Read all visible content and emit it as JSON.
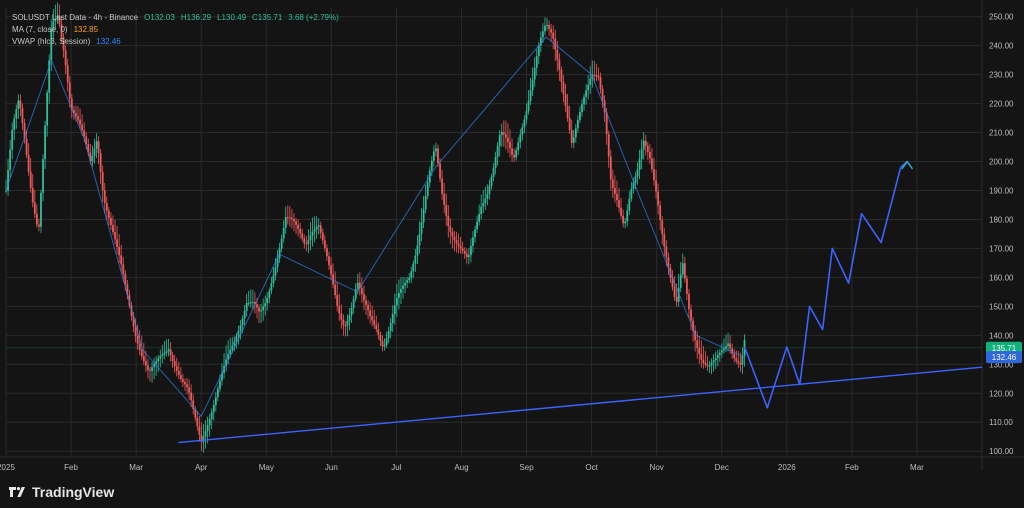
{
  "colors": {
    "background": "#141414",
    "grid": "#2a2a2a",
    "up": "#2fbf9a",
    "down": "#f05a5a",
    "vwap": "#2f8bff",
    "ma": "#ff9f1a",
    "axis_text": "#bdbdbd",
    "trendline": "#3b63ff",
    "projection": "#3b63ff",
    "arrow": "#2aa6c8",
    "label_green_bg": "#11b07a",
    "label_blue_bg": "#2f67d9"
  },
  "legend": {
    "symbol_line": "SOLUSDT Last Data - 4h - Binance",
    "o": "O132.03",
    "h": "H136.29",
    "l": "L130.49",
    "c": "C135.71",
    "chg": "3.68 (+2.79%)",
    "ma_line": "MA (7, close, 0)",
    "ma_value": "132.85",
    "vwap_line": "VWAP (hlc3, Session)",
    "vwap_value": "132.46"
  },
  "price_labels": {
    "last": "135.71",
    "vwap": "132.46"
  },
  "brand": {
    "name": "TradingView"
  },
  "chart_data": {
    "type": "candlestick",
    "title": "",
    "y_ticks": [
      "250.00",
      "240.00",
      "230.00",
      "220.00",
      "210.00",
      "200.00",
      "190.00",
      "180.00",
      "170.00",
      "160.00",
      "150.00",
      "140.00",
      "130.00",
      "120.00",
      "110.00",
      "100.00"
    ],
    "ylim": [
      98,
      253
    ],
    "x_labels": [
      "2025",
      "Feb",
      "Mar",
      "Apr",
      "May",
      "Jun",
      "Jul",
      "Aug",
      "Sep",
      "Oct",
      "Nov",
      "Dec",
      "2026",
      "Feb",
      "Mar"
    ],
    "xlim": [
      0,
      15
    ],
    "x_tick_positions": [
      0.0,
      1.0,
      2.0,
      3.0,
      4.0,
      5.0,
      6.0,
      7.0,
      8.0,
      9.0,
      10.0,
      11.0,
      12.0,
      13.0,
      14.0
    ],
    "candles_path": [
      [
        0.0,
        190
      ],
      [
        0.1,
        210
      ],
      [
        0.2,
        220
      ],
      [
        0.3,
        205
      ],
      [
        0.4,
        188
      ],
      [
        0.5,
        175
      ],
      [
        0.6,
        210
      ],
      [
        0.7,
        245
      ],
      [
        0.8,
        250
      ],
      [
        0.9,
        238
      ],
      [
        1.0,
        220
      ],
      [
        1.1,
        215
      ],
      [
        1.2,
        208
      ],
      [
        1.3,
        200
      ],
      [
        1.4,
        210
      ],
      [
        1.5,
        190
      ],
      [
        1.6,
        180
      ],
      [
        1.7,
        170
      ],
      [
        1.8,
        160
      ],
      [
        1.9,
        150
      ],
      [
        2.0,
        140
      ],
      [
        2.1,
        132
      ],
      [
        2.2,
        125
      ],
      [
        2.3,
        128
      ],
      [
        2.4,
        132
      ],
      [
        2.5,
        136
      ],
      [
        2.6,
        130
      ],
      [
        2.7,
        124
      ],
      [
        2.8,
        120
      ],
      [
        2.9,
        112
      ],
      [
        3.0,
        105
      ],
      [
        3.1,
        112
      ],
      [
        3.2,
        118
      ],
      [
        3.3,
        125
      ],
      [
        3.4,
        132
      ],
      [
        3.5,
        138
      ],
      [
        3.6,
        145
      ],
      [
        3.7,
        152
      ],
      [
        3.8,
        150
      ],
      [
        3.9,
        145
      ],
      [
        4.0,
        150
      ],
      [
        4.1,
        160
      ],
      [
        4.2,
        170
      ],
      [
        4.3,
        180
      ],
      [
        4.4,
        178
      ],
      [
        4.5,
        175
      ],
      [
        4.6,
        172
      ],
      [
        4.7,
        178
      ],
      [
        4.8,
        180
      ],
      [
        4.9,
        170
      ],
      [
        5.0,
        160
      ],
      [
        5.1,
        150
      ],
      [
        5.2,
        145
      ],
      [
        5.3,
        150
      ],
      [
        5.4,
        158
      ],
      [
        5.5,
        150
      ],
      [
        5.6,
        145
      ],
      [
        5.7,
        142
      ],
      [
        5.8,
        136
      ],
      [
        5.9,
        142
      ],
      [
        6.0,
        150
      ],
      [
        6.1,
        155
      ],
      [
        6.2,
        160
      ],
      [
        6.3,
        170
      ],
      [
        6.4,
        182
      ],
      [
        6.5,
        195
      ],
      [
        6.6,
        205
      ],
      [
        6.7,
        190
      ],
      [
        6.8,
        180
      ],
      [
        6.9,
        175
      ],
      [
        7.0,
        170
      ],
      [
        7.1,
        165
      ],
      [
        7.2,
        175
      ],
      [
        7.3,
        185
      ],
      [
        7.4,
        190
      ],
      [
        7.5,
        198
      ],
      [
        7.6,
        208
      ],
      [
        7.7,
        205
      ],
      [
        7.8,
        200
      ],
      [
        7.9,
        210
      ],
      [
        8.0,
        218
      ],
      [
        8.1,
        228
      ],
      [
        8.2,
        240
      ],
      [
        8.3,
        248
      ],
      [
        8.4,
        246
      ],
      [
        8.5,
        235
      ],
      [
        8.6,
        220
      ],
      [
        8.7,
        205
      ],
      [
        8.8,
        215
      ],
      [
        8.9,
        225
      ],
      [
        9.0,
        232
      ],
      [
        9.1,
        230
      ],
      [
        9.2,
        215
      ],
      [
        9.3,
        190
      ],
      [
        9.4,
        185
      ],
      [
        9.5,
        178
      ],
      [
        9.6,
        190
      ],
      [
        9.7,
        195
      ],
      [
        9.8,
        205
      ],
      [
        9.9,
        200
      ],
      [
        10.0,
        190
      ],
      [
        10.1,
        175
      ],
      [
        10.2,
        162
      ],
      [
        10.3,
        150
      ],
      [
        10.4,
        165
      ],
      [
        10.5,
        150
      ],
      [
        10.6,
        140
      ],
      [
        10.7,
        132
      ],
      [
        10.8,
        128
      ],
      [
        10.9,
        130
      ],
      [
        11.0,
        134
      ],
      [
        11.1,
        138
      ],
      [
        11.2,
        132
      ],
      [
        11.3,
        128
      ],
      [
        11.35,
        136
      ]
    ],
    "vwap_line": [
      [
        0.0,
        190
      ],
      [
        0.7,
        235
      ],
      [
        1.2,
        208
      ],
      [
        2.1,
        135
      ],
      [
        3.0,
        112
      ],
      [
        4.2,
        168
      ],
      [
        5.4,
        155
      ],
      [
        6.6,
        198
      ],
      [
        8.3,
        243
      ],
      [
        9.0,
        230
      ],
      [
        9.7,
        190
      ],
      [
        10.6,
        140
      ],
      [
        11.35,
        132.46
      ]
    ],
    "trendline": {
      "x": [
        2.65,
        15.0
      ],
      "y": [
        103,
        129
      ]
    },
    "projection_path": {
      "x": [
        11.35,
        11.7,
        12.0,
        12.2,
        12.35,
        12.55,
        12.7,
        12.95,
        13.15,
        13.45,
        13.75,
        13.85
      ],
      "y": [
        136,
        115,
        136,
        123,
        150,
        142,
        170,
        158,
        182,
        172,
        198,
        200
      ]
    },
    "arrow": {
      "x": 13.85,
      "y": 200
    }
  }
}
